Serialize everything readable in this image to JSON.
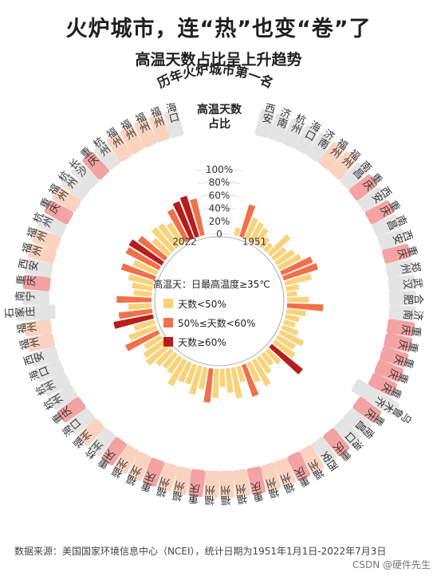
{
  "title": "火炉城市，连“热”也变“卷”了",
  "subtitle": "高温天数占比呈上升趋势",
  "ring_title": "历年火炉城市第一名",
  "source": "数据来源：美国国家环境信息中心（NCEI），统计日期为1951年1月1日-2022年7月3日",
  "watermark": "CSDN @硬件先生",
  "colors": {
    "low": "#FAD27A",
    "mid": "#F0704A",
    "high": "#B81C1C",
    "chongqing_bg": "#F3A3A3",
    "fuzhou_bg": "#FAD3C0",
    "other_bg": "#E4E4E4"
  },
  "chart_data": {
    "type": "radial-bar",
    "title": "高温天数占比",
    "definition": "高温天：日最高温度≥35℃",
    "ylim": [
      0,
      100
    ],
    "yticks": [
      "100%",
      "80%",
      "60%",
      "40%",
      "20%",
      "0"
    ],
    "start_label": "1951",
    "end_label": "2022",
    "legend": [
      {
        "label": "天数<50%",
        "color": "#FAD27A"
      },
      {
        "label": "50%≤天数<60%",
        "color": "#F0704A"
      },
      {
        "label": "天数≥60%",
        "color": "#B81C1C"
      }
    ],
    "years": [
      1951,
      1952,
      1953,
      1954,
      1955,
      1956,
      1957,
      1958,
      1959,
      1960,
      1961,
      1962,
      1963,
      1964,
      1965,
      1966,
      1967,
      1968,
      1969,
      1970,
      1971,
      1972,
      1973,
      1974,
      1975,
      1976,
      1977,
      1978,
      1979,
      1980,
      1981,
      1982,
      1983,
      1984,
      1985,
      1986,
      1987,
      1988,
      1989,
      1990,
      1991,
      1992,
      1993,
      1994,
      1995,
      1996,
      1997,
      1998,
      1999,
      2000,
      2001,
      2002,
      2003,
      2004,
      2005,
      2006,
      2007,
      2008,
      2009,
      2010,
      2011,
      2012,
      2013,
      2014,
      2015,
      2016,
      2017,
      2018,
      2019,
      2020,
      2021,
      2022
    ],
    "values": [
      12,
      52,
      35,
      32,
      28,
      18,
      14,
      42,
      25,
      33,
      38,
      52,
      56,
      42,
      20,
      16,
      34,
      56,
      30,
      22,
      18,
      26,
      40,
      32,
      38,
      62,
      28,
      22,
      30,
      45,
      33,
      52,
      25,
      48,
      38,
      28,
      45,
      53,
      34,
      45,
      32,
      33,
      45,
      30,
      28,
      32,
      42,
      38,
      30,
      56,
      45,
      33,
      62,
      52,
      36,
      54,
      28,
      32,
      40,
      55,
      40,
      58,
      60,
      52,
      34,
      46,
      44,
      38,
      55,
      62,
      66,
      58
    ],
    "champions": [
      "西安",
      "济南",
      "杭州",
      "海口",
      "济南",
      "福州",
      "福州",
      "南昌",
      "重庆",
      "西安",
      "重庆",
      "南昌",
      "西安",
      "重庆",
      "郑州",
      "武汉",
      "合肥",
      "济南",
      "重庆",
      "重庆",
      "重庆",
      "重庆",
      "重庆",
      "乌鲁木齐",
      "重庆",
      "南昌",
      "海口",
      "重庆",
      "西安",
      "福州",
      "重庆",
      "福州",
      "福州",
      "重庆",
      "福州",
      "福州",
      "福州",
      "重庆",
      "福州",
      "福州",
      "重庆",
      "福州",
      "福州",
      "重庆",
      "杭州",
      "福州",
      "海口",
      "重庆",
      "杭州",
      "杭州",
      "海口",
      "西安",
      "福州",
      "福州",
      "石家庄",
      "南宁",
      "重庆",
      "西安",
      "福州",
      "福州",
      "杭州",
      "重庆",
      "福州",
      "杭州",
      "长沙",
      "重庆",
      "杭州",
      "福州",
      "福州",
      "福州",
      "福州",
      "海口"
    ]
  }
}
